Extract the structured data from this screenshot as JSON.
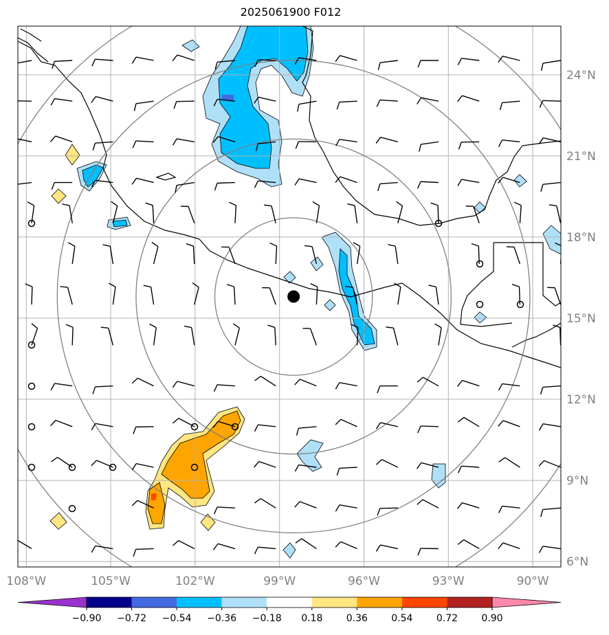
{
  "title": "2025061900 F012",
  "map": {
    "lon_range": [
      -108.3,
      -89.0
    ],
    "lat_range": [
      5.8,
      25.8
    ],
    "lon_ticks": [
      {
        "value": -108,
        "label": "108°W"
      },
      {
        "value": -105,
        "label": "105°W"
      },
      {
        "value": -102,
        "label": "102°W"
      },
      {
        "value": -99,
        "label": "99°W"
      },
      {
        "value": -96,
        "label": "96°W"
      },
      {
        "value": -93,
        "label": "93°W"
      },
      {
        "value": -90,
        "label": "90°W"
      }
    ],
    "lat_ticks": [
      {
        "value": 24,
        "label": "24°N"
      },
      {
        "value": 21,
        "label": "21°N"
      },
      {
        "value": 18,
        "label": "18°N"
      },
      {
        "value": 15,
        "label": "15°N"
      },
      {
        "value": 12,
        "label": "12°N"
      },
      {
        "value": 9,
        "label": "9°N"
      },
      {
        "value": 6,
        "label": "6°N"
      }
    ],
    "grid": true,
    "center": {
      "lon": -98.5,
      "lat": 15.8
    },
    "range_rings_deg": [
      2.8,
      5.6,
      8.4,
      11.2
    ],
    "colors": {
      "grid": "#b0b0b0",
      "ring": "#808080",
      "coast": "#000000",
      "barb": "#000000"
    }
  },
  "colorbar": {
    "boundaries": [
      -0.9,
      -0.72,
      -0.54,
      -0.36,
      -0.18,
      0.18,
      0.36,
      0.54,
      0.72,
      0.9
    ],
    "labels": [
      "−0.90",
      "−0.72",
      "−0.54",
      "−0.36",
      "−0.18",
      "0.18",
      "0.36",
      "0.54",
      "0.72",
      "0.90"
    ],
    "colors": [
      "#9932cc",
      "#00008b",
      "#4169e1",
      "#00bfff",
      "#b0e0f8",
      "#ffffff",
      "#ffe680",
      "#ffa500",
      "#ff4500",
      "#b22222",
      "#ff88aa"
    ]
  }
}
